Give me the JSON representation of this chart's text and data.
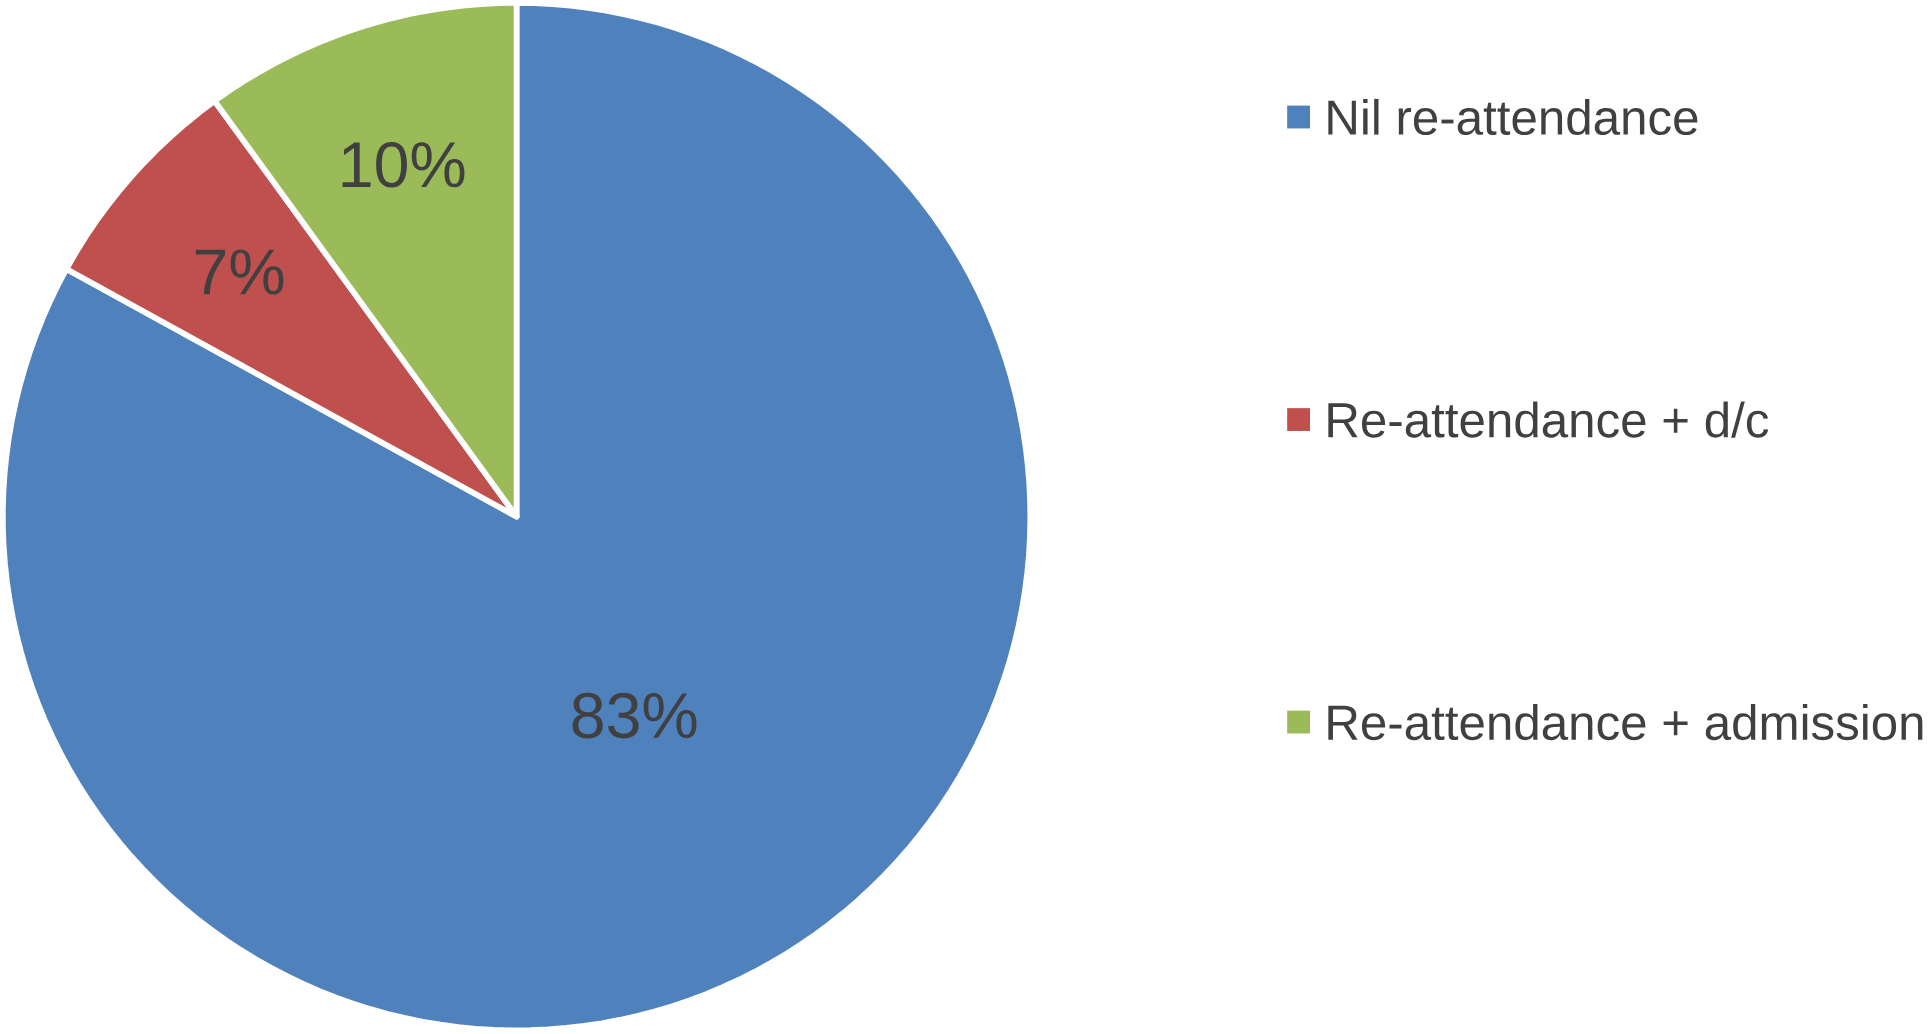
{
  "chart_data": {
    "type": "pie",
    "categories": [
      "Nil re-attendance",
      "Re-attendance + d/c",
      "Re-attendance + admission"
    ],
    "values": [
      83,
      7,
      10
    ],
    "colors": [
      "#4f81bd",
      "#c0504d",
      "#9bbb59"
    ],
    "value_labels": [
      "83%",
      "7%",
      "10%"
    ],
    "legend": "right"
  }
}
